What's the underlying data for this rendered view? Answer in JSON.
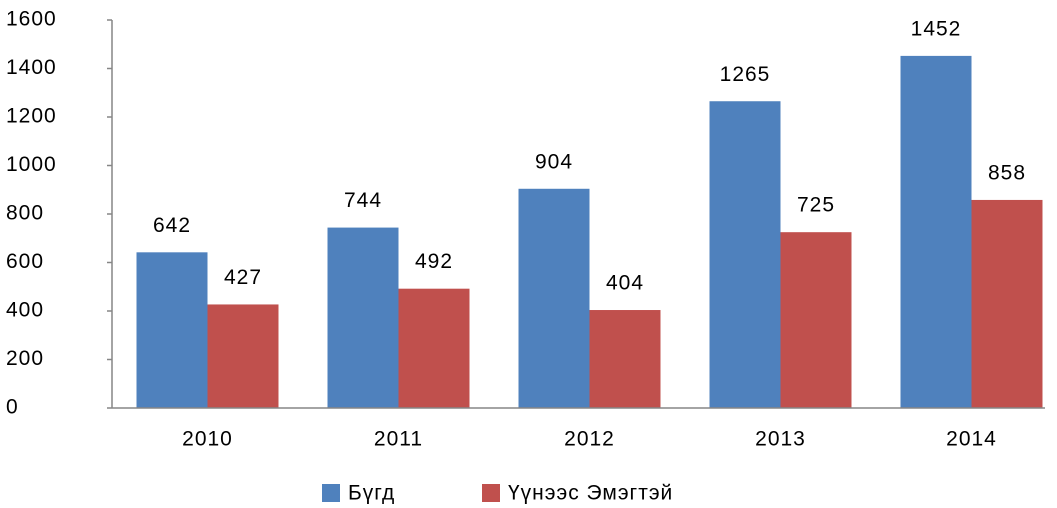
{
  "chart_data": {
    "type": "bar",
    "categories": [
      "2010",
      "2011",
      "2012",
      "2013",
      "2014"
    ],
    "series": [
      {
        "name": "Бүгд",
        "color": "#4f81bd",
        "values": [
          642,
          744,
          904,
          1265,
          1452
        ]
      },
      {
        "name": "Үүнээс Эмэгтэй",
        "color": "#c0504d",
        "values": [
          427,
          492,
          404,
          725,
          858
        ]
      }
    ],
    "ylim": [
      0,
      1600
    ],
    "yticks": [
      0,
      200,
      400,
      600,
      800,
      1000,
      1200,
      1400,
      1600
    ],
    "grid": false,
    "legend": "bottom"
  }
}
